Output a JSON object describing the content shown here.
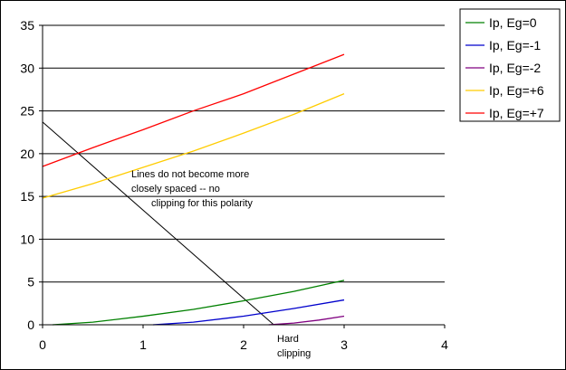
{
  "chart_data": {
    "type": "line",
    "title": "",
    "xlabel": "",
    "ylabel": "",
    "xlim": [
      0,
      4
    ],
    "ylim": [
      0,
      35
    ],
    "x_ticks": [
      "0",
      "1",
      "2",
      "3",
      "4"
    ],
    "y_ticks": [
      "0",
      "5",
      "10",
      "15",
      "20",
      "25",
      "30",
      "35"
    ],
    "grid": "horizontal",
    "legend_position": "right",
    "series": [
      {
        "name": "Ip, Eg=0",
        "color": "#008000",
        "points": [
          [
            0.1,
            0.0
          ],
          [
            0.5,
            0.3
          ],
          [
            1.0,
            1.0
          ],
          [
            1.5,
            1.8
          ],
          [
            2.0,
            2.8
          ],
          [
            2.5,
            3.9
          ],
          [
            3.0,
            5.2
          ]
        ]
      },
      {
        "name": "Ip, Eg=-1",
        "color": "#0000cc",
        "points": [
          [
            1.1,
            0.0
          ],
          [
            1.5,
            0.3
          ],
          [
            2.0,
            1.0
          ],
          [
            2.5,
            1.9
          ],
          [
            3.0,
            2.9
          ]
        ]
      },
      {
        "name": "Ip, Eg=-2",
        "color": "#800080",
        "points": [
          [
            2.25,
            0.0
          ],
          [
            2.5,
            0.2
          ],
          [
            2.75,
            0.55
          ],
          [
            3.0,
            1.0
          ]
        ]
      },
      {
        "name": "Ip, Eg=+6",
        "color": "#ffcc00",
        "points": [
          [
            0.0,
            14.8
          ],
          [
            0.5,
            16.5
          ],
          [
            1.0,
            18.4
          ],
          [
            1.5,
            20.3
          ],
          [
            2.0,
            22.4
          ],
          [
            2.5,
            24.6
          ],
          [
            3.0,
            27.0
          ]
        ]
      },
      {
        "name": "Ip, Eg=+7",
        "color": "#ff0000",
        "points": [
          [
            0.0,
            18.5
          ],
          [
            0.5,
            20.7
          ],
          [
            1.0,
            22.8
          ],
          [
            1.5,
            25.0
          ],
          [
            2.0,
            27.0
          ],
          [
            2.5,
            29.3
          ],
          [
            3.0,
            31.6
          ]
        ]
      }
    ],
    "load_line": {
      "color": "#000000",
      "points": [
        [
          0.0,
          23.7
        ],
        [
          2.3,
          0.0
        ]
      ]
    },
    "annotations": [
      {
        "id": "polarity-note",
        "lines": [
          "Lines do not become more",
          "closely spaced -- no",
          "clipping for this polarity"
        ]
      },
      {
        "id": "hard-clipping-note",
        "lines": [
          "Hard",
          "clipping"
        ]
      }
    ]
  }
}
